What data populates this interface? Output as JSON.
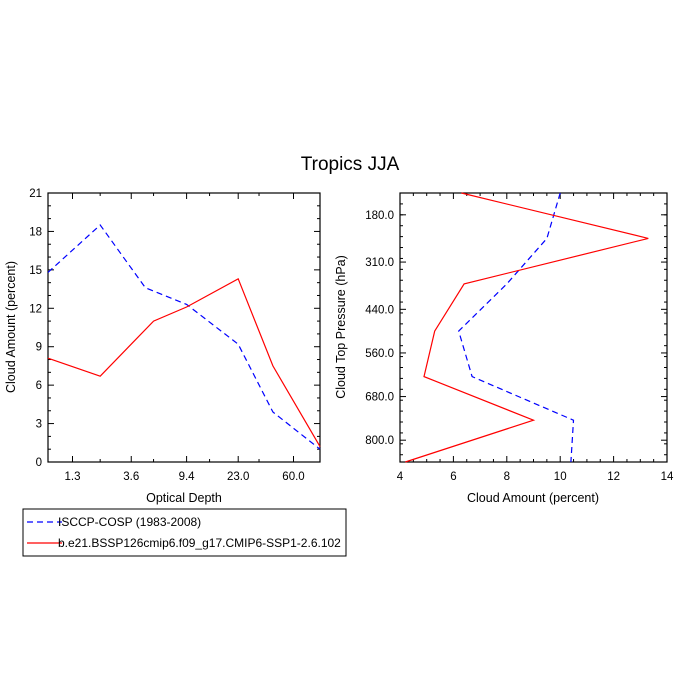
{
  "title": "Tropics JJA",
  "chart_data": [
    {
      "type": "line",
      "xlabel": "Optical Depth",
      "ylabel": "Cloud Amount (percent)",
      "x_tick_labels": [
        "1.3",
        "3.6",
        "9.4",
        "23.0",
        "60.0"
      ],
      "y_ticks": [
        0,
        3,
        6,
        9,
        12,
        15,
        18,
        21
      ],
      "ylim": [
        0,
        21
      ],
      "series": [
        {
          "name": "ISCCP-COSP (1983-2008)",
          "color": "#0000ff",
          "dash": true,
          "x": [
            0.85,
            2.1,
            4.6,
            9.4,
            23.0,
            42.0,
            95.0
          ],
          "y": [
            14.8,
            18.5,
            13.6,
            12.3,
            9.2,
            3.9,
            1.0
          ]
        },
        {
          "name": "b.e21.BSSP126cmip6.f09_g17.CMIP6-SSP1-2.6.102",
          "color": "#ff0000",
          "dash": false,
          "x": [
            0.85,
            2.1,
            5.3,
            9.4,
            23.0,
            42.0,
            95.0
          ],
          "y": [
            8.1,
            6.7,
            11.0,
            12.1,
            14.3,
            7.5,
            1.2
          ]
        }
      ]
    },
    {
      "type": "line",
      "xlabel": "Cloud Amount (percent)",
      "ylabel": "Cloud Top Pressure (hPa)",
      "x_ticks": [
        4,
        6,
        8,
        10,
        12,
        14
      ],
      "xlim": [
        4,
        14
      ],
      "y_tick_labels": [
        "180.0",
        "310.0",
        "440.0",
        "560.0",
        "680.0",
        "800.0"
      ],
      "y_tick_values": [
        180,
        310,
        440,
        560,
        680,
        800
      ],
      "ylim": [
        120,
        860
      ],
      "series": [
        {
          "name": "ISCCP-COSP (1983-2008)",
          "color": "#0000ff",
          "dash": true,
          "x": [
            10.0,
            9.5,
            8.0,
            6.2,
            6.7,
            10.5,
            10.4
          ],
          "y": [
            120,
            245,
            370,
            500,
            625,
            745,
            860
          ]
        },
        {
          "name": "b.e21.BSSP126cmip6.f09_g17.CMIP6-SSP1-2.6.102",
          "color": "#ff0000",
          "dash": false,
          "x": [
            6.3,
            13.3,
            6.4,
            5.3,
            4.9,
            9.0,
            4.2
          ],
          "y": [
            120,
            245,
            370,
            500,
            625,
            745,
            860
          ]
        }
      ]
    }
  ],
  "legend": [
    {
      "label": "ISCCP-COSP (1983-2008)",
      "color": "#0000ff",
      "dash": true
    },
    {
      "label": "b.e21.BSSP126cmip6.f09_g17.CMIP6-SSP1-2.6.102",
      "color": "#ff0000",
      "dash": false
    }
  ]
}
